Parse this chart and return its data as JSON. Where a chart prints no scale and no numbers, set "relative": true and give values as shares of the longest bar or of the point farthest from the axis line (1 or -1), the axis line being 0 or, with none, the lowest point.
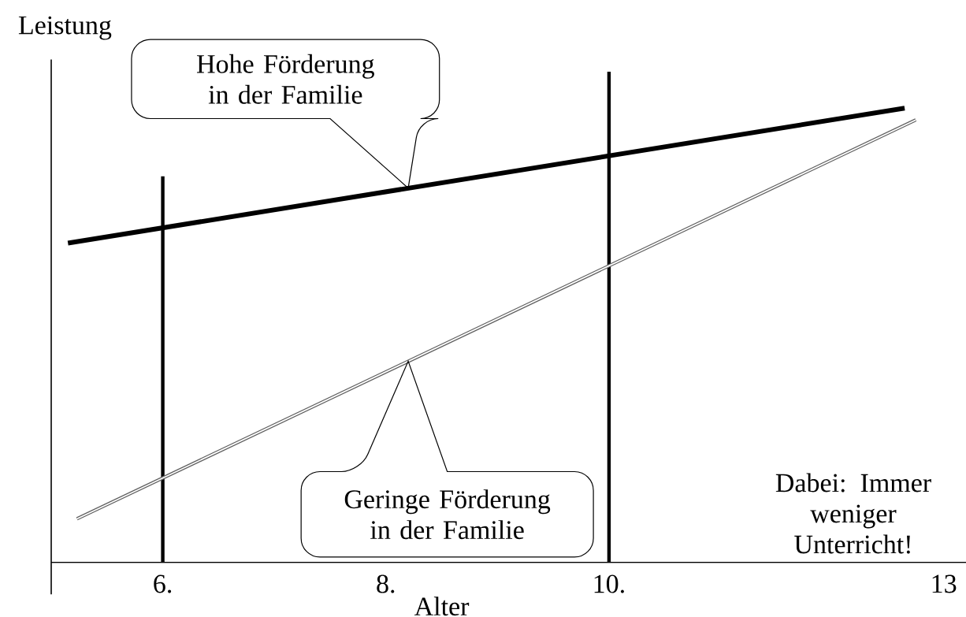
{
  "chart_data": {
    "type": "line",
    "relative": true,
    "xlabel": "Alter",
    "ylabel": "Leistung",
    "xlim": [
      5,
      13.2
    ],
    "xticks": [
      {
        "value": 6,
        "label": "6."
      },
      {
        "value": 8,
        "label": "8."
      },
      {
        "value": 10,
        "label": "10."
      },
      {
        "value": 13,
        "label": "13"
      }
    ],
    "series": [
      {
        "color": "#000000",
        "x": [
          5.15,
          12.65
        ],
        "values": [
          0.703,
          1.0
        ]
      },
      {
        "color": "#606060",
        "x": [
          5.23,
          12.75
        ],
        "values": [
          0.096,
          0.974
        ]
      }
    ],
    "ref_lines": [
      {
        "axis": "x",
        "value": 6,
        "color": "#000000"
      },
      {
        "axis": "x",
        "value": 10,
        "color": "#000000"
      }
    ],
    "annotations": [
      "Hohe Förderung in der Familie",
      "Geringe Förderung in der Familie",
      "Dabei: Immer weniger Unterricht!"
    ],
    "grid": false
  }
}
